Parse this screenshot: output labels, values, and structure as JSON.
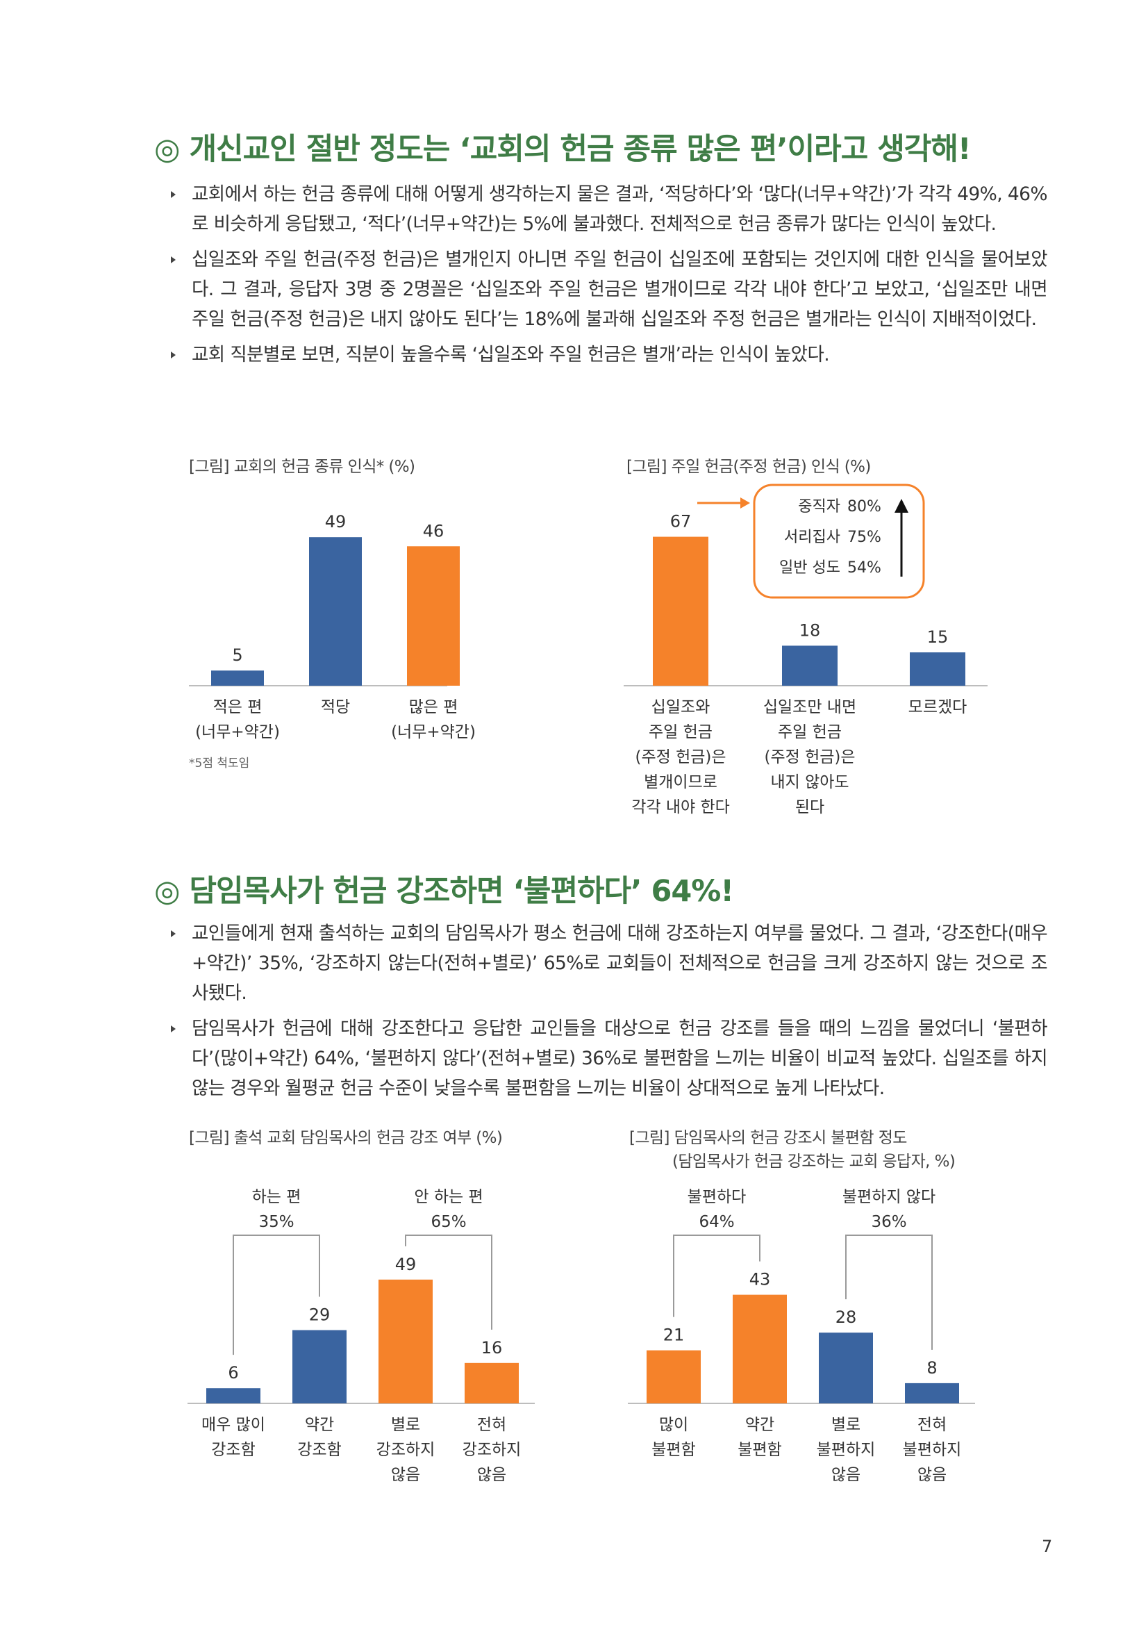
{
  "section1": {
    "heading": "◎ 개신교인 절반 정도는 ‘교회의 헌금 종류 많은 편’이라고 생각해!",
    "bullets": [
      "교회에서 하는 헌금 종류에 대해 어떻게 생각하는지 물은 결과, ‘적당하다’와 ‘많다(너무+약간)’가 각각 49%, 46%로 비슷하게 응답됐고, ‘적다’(너무+약간)는 5%에 불과했다. 전체적으로 헌금 종류가 많다는 인식이 높았다.",
      "십일조와 주일 헌금(주정 헌금)은 별개인지 아니면 주일 헌금이 십일조에 포함되는 것인지에 대한 인식을 물어보았다. 그 결과, 응답자 3명 중 2명꼴은 ‘십일조와 주일 헌금은 별개이므로 각각 내야 한다’고 보았고, ‘십일조만 내면 주일 헌금(주정 헌금)은 내지 않아도 된다’는 18%에 불과해 십일조와 주정 헌금은 별개라는 인식이 지배적이었다.",
      "교회 직분별로 보면, 직분이 높을수록 ‘십일조와 주일 헌금은 별개’라는 인식이 높았다."
    ]
  },
  "section2": {
    "heading": "◎ 담임목사가 헌금 강조하면 ‘불편하다’ 64%!",
    "bullets": [
      "교인들에게 현재 출석하는 교회의 담임목사가 평소 헌금에 대해 강조하는지 여부를 물었다. 그 결과, ‘강조한다(매우+약간)’ 35%, ‘강조하지 않는다(전혀+별로)’ 65%로 교회들이 전체적으로 헌금을 크게 강조하지 않는 것으로 조사됐다.",
      "담임목사가 헌금에 대해 강조한다고 응답한 교인들을 대상으로 헌금 강조를 들을 때의 느낌을 물었더니 ‘불편하다’(많이+약간) 64%, ‘불편하지 않다’(전혀+별로) 36%로 불편함을 느끼는 비율이 비교적 높았다. 십일조를 하지 않는 경우와 월평균 헌금 수준이 낮을수록 불편함을 느끼는 비율이 상대적으로 높게 나타났다."
    ]
  },
  "chart_data": [
    {
      "type": "bar",
      "title": "[그림] 교회의 헌금 종류 인식* (%)",
      "categories": [
        [
          "적은 편",
          "(너무+약간)"
        ],
        [
          "적당"
        ],
        [
          "많은 편",
          "(너무+약간)"
        ]
      ],
      "values": [
        5,
        49,
        46
      ],
      "colors": [
        "#3a64a0",
        "#3a64a0",
        "#f5822a"
      ],
      "note": "*5점 척도임",
      "ylim": [
        0,
        55
      ]
    },
    {
      "type": "bar",
      "title": "[그림] 주일 헌금(주정 헌금) 인식 (%)",
      "categories": [
        [
          "십일조와",
          "주일 헌금",
          "(주정 헌금)은",
          "별개이므로",
          "각각 내야 한다"
        ],
        [
          "십일조만 내면",
          "주일 헌금",
          "(주정 헌금)은",
          "내지 않아도",
          "된다"
        ],
        [
          "모르겠다"
        ]
      ],
      "values": [
        67,
        18,
        15
      ],
      "colors": [
        "#f5822a",
        "#3a64a0",
        "#3a64a0"
      ],
      "ylim": [
        0,
        75
      ],
      "annotation": [
        {
          "label": "중직자",
          "value": "80%"
        },
        {
          "label": "서리집사",
          "value": "75%"
        },
        {
          "label": "일반 성도",
          "value": "54%"
        }
      ]
    },
    {
      "type": "bar",
      "title": "[그림] 출석 교회 담임목사의 헌금 강조 여부 (%)",
      "categories": [
        [
          "매우 많이",
          "강조함"
        ],
        [
          "약간",
          "강조함"
        ],
        [
          "별로",
          "강조하지",
          "않음"
        ],
        [
          "전혀",
          "강조하지",
          "않음"
        ]
      ],
      "values": [
        6,
        29,
        49,
        16
      ],
      "colors": [
        "#3a64a0",
        "#3a64a0",
        "#f5822a",
        "#f5822a"
      ],
      "ylim": [
        0,
        55
      ],
      "groups": [
        {
          "label": "하는 편",
          "value": "35%",
          "from": 0,
          "to": 1
        },
        {
          "label": "안 하는 편",
          "value": "65%",
          "from": 2,
          "to": 3
        }
      ]
    },
    {
      "type": "bar",
      "title": "[그림] 담임목사의 헌금 강조시 불편함 정도",
      "subtitle": "(담임목사가 헌금 강조하는 교회 응답자, %)",
      "categories": [
        [
          "많이",
          "불편함"
        ],
        [
          "약간",
          "불편함"
        ],
        [
          "별로",
          "불편하지",
          "않음"
        ],
        [
          "전혀",
          "불편하지",
          "않음"
        ]
      ],
      "values": [
        21,
        43,
        28,
        8
      ],
      "colors": [
        "#f5822a",
        "#f5822a",
        "#3a64a0",
        "#3a64a0"
      ],
      "ylim": [
        0,
        55
      ],
      "groups": [
        {
          "label": "불편하다",
          "value": "64%",
          "from": 0,
          "to": 1
        },
        {
          "label": "불편하지 않다",
          "value": "36%",
          "from": 2,
          "to": 3
        }
      ]
    }
  ],
  "page_number": "7"
}
